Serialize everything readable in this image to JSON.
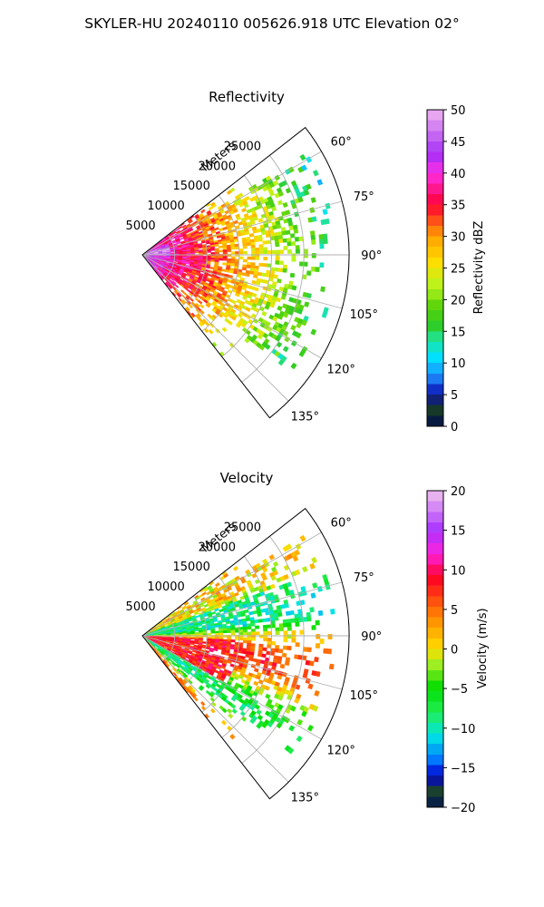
{
  "suptitle": "SKYLER-HU  20240110  005626.918 UTC Elevation 02°",
  "chart_data": [
    {
      "type": "heatmap",
      "subtype": "radar-ppi-sector",
      "title": "Reflectivity",
      "range_label": "Meters",
      "range_ticks": [
        5000,
        10000,
        15000,
        20000,
        25000
      ],
      "range_tick_labels": [
        "5000",
        "10000",
        "15000",
        "20000",
        "25000"
      ],
      "rlim": [
        0,
        32000
      ],
      "azimuth_range_deg": [
        52,
        142
      ],
      "azimuth_ticks_deg": [
        60,
        75,
        90,
        105,
        120,
        135
      ],
      "azimuth_tick_labels": [
        "60°",
        "75°",
        "90°",
        "105°",
        "120°",
        "135°"
      ],
      "grid": true,
      "colorbar": {
        "label": "Reflectivity dBZ",
        "range": [
          0,
          50
        ],
        "ticks": [
          0,
          5,
          10,
          15,
          20,
          25,
          30,
          35,
          40,
          45,
          50
        ],
        "tick_labels": [
          "0",
          "5",
          "10",
          "15",
          "20",
          "25",
          "30",
          "35",
          "40",
          "45",
          "50"
        ],
        "colors": [
          "#000d4d",
          "#1a4020",
          "#0a0ab0",
          "#1e90ff",
          "#00e5ff",
          "#22e28c",
          "#2ecc22",
          "#5cd40a",
          "#b6f51e",
          "#ffdd00",
          "#ffa000",
          "#ff0033",
          "#ff2fe6",
          "#a52ef5",
          "#f0b6ee"
        ],
        "stops": [
          0,
          3,
          5,
          8,
          11,
          14,
          16,
          19,
          22,
          26,
          30,
          35,
          40,
          43,
          50
        ]
      }
    },
    {
      "type": "heatmap",
      "subtype": "radar-ppi-sector",
      "title": "Velocity",
      "range_label": "Meters",
      "range_ticks": [
        5000,
        10000,
        15000,
        20000,
        25000
      ],
      "range_tick_labels": [
        "5000",
        "10000",
        "15000",
        "20000",
        "25000"
      ],
      "rlim": [
        0,
        32000
      ],
      "azimuth_range_deg": [
        52,
        142
      ],
      "azimuth_ticks_deg": [
        60,
        75,
        90,
        105,
        120,
        135
      ],
      "azimuth_tick_labels": [
        "60°",
        "75°",
        "90°",
        "105°",
        "120°",
        "135°"
      ],
      "grid": true,
      "colorbar": {
        "label": "Velocity (m/s)",
        "range": [
          -20,
          20
        ],
        "ticks": [
          -20,
          -15,
          -10,
          -5,
          0,
          5,
          10,
          15,
          20
        ],
        "tick_labels": [
          "−20",
          "−15",
          "−10",
          "−5",
          "0",
          "5",
          "10",
          "15",
          "20"
        ],
        "colors": [
          "#001450",
          "#1a4030",
          "#0000d0",
          "#0078ff",
          "#00e5e5",
          "#22ee55",
          "#00dd00",
          "#9dee22",
          "#ffdd00",
          "#ff8800",
          "#ff0022",
          "#ff22dd",
          "#aa33ff",
          "#f2c4ee"
        ],
        "stops": [
          -20,
          -18,
          -16,
          -14,
          -11,
          -8,
          -5,
          -2,
          0,
          4,
          9,
          12,
          15,
          20
        ]
      }
    }
  ]
}
